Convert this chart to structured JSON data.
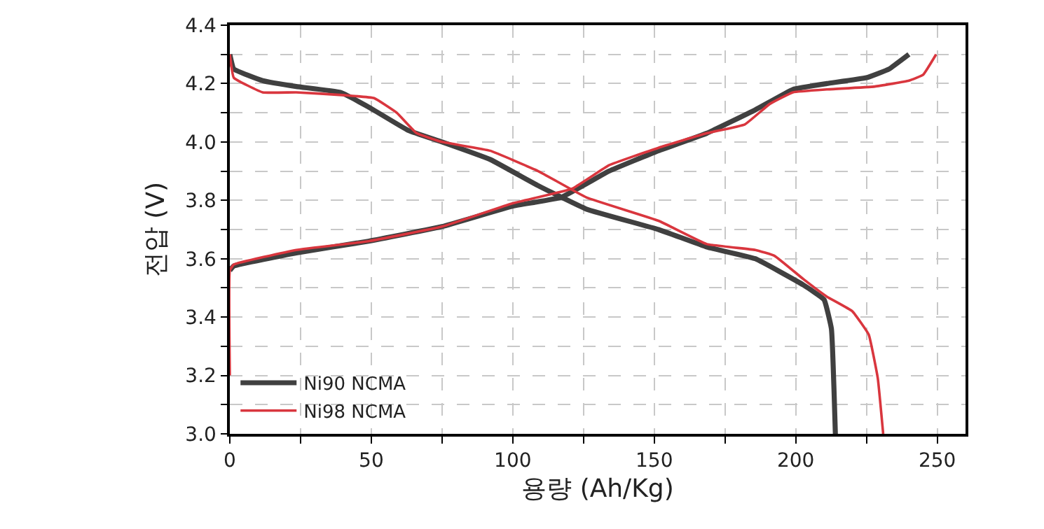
{
  "chart_data": {
    "type": "line",
    "xlabel": "용량 (Ah/Kg)",
    "ylabel": "전압 (V)",
    "xlim": [
      0,
      260
    ],
    "ylim": [
      3.0,
      4.4
    ],
    "xticks": [
      0,
      {
        "value": 25,
        "label": null
      },
      50,
      {
        "value": 75,
        "label": null
      },
      100,
      {
        "value": 125,
        "label": null
      },
      150,
      {
        "value": 175,
        "label": null
      },
      200,
      {
        "value": 225,
        "label": null
      },
      250
    ],
    "yticks": [
      {
        "value": 3.0,
        "label": "3.0"
      },
      {
        "value": 3.1,
        "label": null
      },
      3.2,
      {
        "value": 3.3,
        "label": null
      },
      3.4,
      {
        "value": 3.5,
        "label": null
      },
      3.6,
      {
        "value": 3.7,
        "label": null
      },
      3.8,
      {
        "value": 3.9,
        "label": null
      },
      {
        "value": 4.0,
        "label": "4.0"
      },
      {
        "value": 4.1,
        "label": null
      },
      4.2,
      {
        "value": 4.3,
        "label": null
      },
      4.4
    ],
    "grid": true,
    "legend": "bottom left",
    "line_style": "solid",
    "marker": "none",
    "series": [
      {
        "name": "Ni90 NCMA",
        "color": "#404040",
        "x": [
          0,
          1.4,
          23.5,
          49,
          75,
          100,
          117,
          134,
          151.5,
          168.6,
          185.7,
          199,
          211,
          225,
          233,
          240,
          null,
          0,
          1.4,
          11.6,
          23.5,
          39,
          49,
          63,
          75,
          92,
          109,
          126,
          151.5,
          168.6,
          185.7,
          202.7,
          210,
          212.6,
          214
        ],
        "values": [
          3.56,
          3.575,
          3.62,
          3.66,
          3.71,
          3.78,
          3.81,
          3.9,
          3.97,
          4.03,
          4.11,
          4.18,
          4.2,
          4.22,
          4.25,
          4.3,
          null,
          4.3,
          4.25,
          4.21,
          4.19,
          4.17,
          4.12,
          4.04,
          4.0,
          3.94,
          3.85,
          3.77,
          3.7,
          3.64,
          3.6,
          3.51,
          3.46,
          3.36,
          3.0
        ]
      },
      {
        "name": "Ni98 NCMA",
        "color": "#d9363e",
        "x": [
          0,
          0,
          1.4,
          23.5,
          49,
          75,
          100,
          121,
          134,
          151.5,
          168.6,
          182,
          190.8,
          199,
          211,
          228,
          240,
          245,
          249.6,
          null,
          0,
          1.4,
          11.6,
          23.5,
          40.6,
          51,
          59,
          66,
          75,
          92,
          109,
          126,
          151.5,
          168.6,
          185.7,
          192.5,
          202.7,
          211,
          220,
          225.8,
          229,
          230.9
        ],
        "values": [
          3.2,
          3.56,
          3.58,
          3.63,
          3.66,
          3.71,
          3.79,
          3.84,
          3.92,
          3.98,
          4.03,
          4.06,
          4.13,
          4.17,
          4.18,
          4.19,
          4.21,
          4.23,
          4.3,
          null,
          4.3,
          4.22,
          4.17,
          4.17,
          4.16,
          4.15,
          4.1,
          4.03,
          4.0,
          3.97,
          3.9,
          3.81,
          3.73,
          3.65,
          3.63,
          3.61,
          3.53,
          3.47,
          3.42,
          3.34,
          3.19,
          3.0
        ]
      }
    ]
  }
}
